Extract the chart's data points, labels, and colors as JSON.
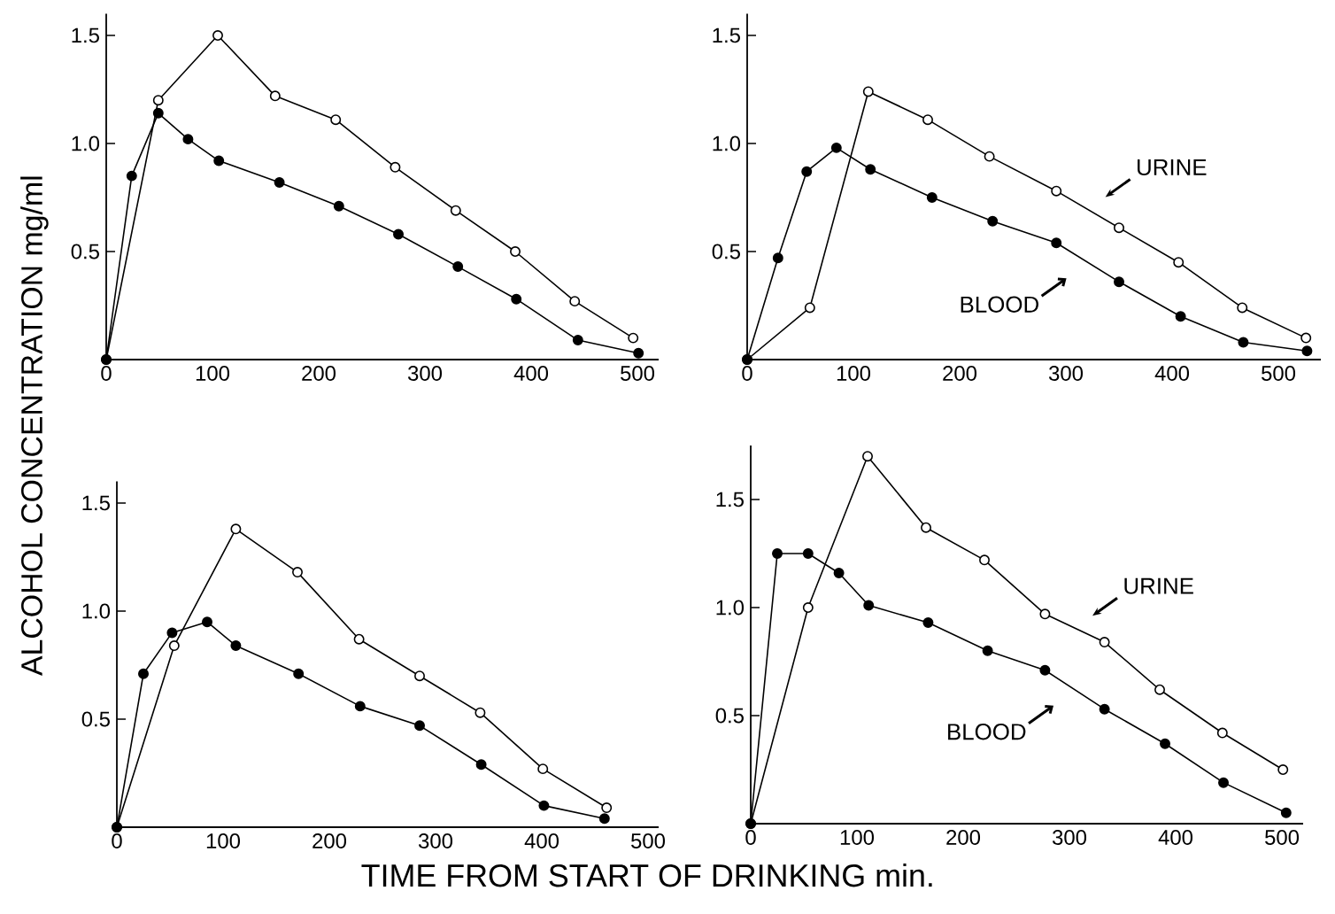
{
  "chart_data": [
    {
      "type": "line",
      "ylabel": "ALCOHOL CONCENTRATION mg/ml",
      "xlim": [
        0,
        520
      ],
      "ylim": [
        0,
        1.6
      ],
      "xticks": [
        0,
        100,
        200,
        300,
        400,
        500
      ],
      "yticks": [
        {
          "value": 0.5,
          "label": "0.5"
        },
        {
          "value": 1,
          "label": "1.0"
        },
        {
          "value": 1.5,
          "label": "1.5"
        }
      ],
      "marker": "circle",
      "line_style": "solid",
      "series": [
        {
          "color": "#000000",
          "x": [
            0,
            49,
            105,
            159,
            216,
            272,
            329,
            385,
            441,
            496
          ],
          "values": [
            0,
            1.2,
            1.5,
            1.22,
            1.11,
            0.89,
            0.69,
            0.5,
            0.27,
            0.1
          ]
        },
        {
          "color": "#000000",
          "x": [
            0,
            24,
            49,
            77,
            106,
            163,
            219,
            275,
            331,
            386,
            444,
            501
          ],
          "values": [
            0,
            0.85,
            1.14,
            1.02,
            0.92,
            0.82,
            0.71,
            0.58,
            0.43,
            0.28,
            0.09,
            0.03
          ]
        }
      ]
    },
    {
      "type": "line",
      "xlim": [
        0,
        540
      ],
      "ylim": [
        0,
        1.6
      ],
      "xticks": [
        0,
        100,
        200,
        300,
        400,
        500
      ],
      "yticks": [
        {
          "value": 0.5,
          "label": "0.5"
        },
        {
          "value": 1,
          "label": "1.0"
        },
        {
          "value": 1.5,
          "label": "1.5"
        }
      ],
      "marker": "circle",
      "line_style": "solid",
      "series": [
        {
          "name": "URINE",
          "color": "#000000",
          "x": [
            0,
            59,
            114,
            170,
            228,
            291,
            350,
            406,
            466,
            526
          ],
          "values": [
            0,
            0.24,
            1.24,
            1.11,
            0.94,
            0.78,
            0.61,
            0.45,
            0.24,
            0.1
          ]
        },
        {
          "name": "BLOOD",
          "color": "#000000",
          "x": [
            0,
            29,
            56,
            84,
            116,
            174,
            231,
            291,
            350,
            408,
            467,
            527
          ],
          "values": [
            0,
            0.47,
            0.87,
            0.98,
            0.88,
            0.75,
            0.64,
            0.54,
            0.36,
            0.2,
            0.08,
            0.04
          ]
        }
      ]
    },
    {
      "type": "line",
      "xlabel": "TIME FROM START OF DRINKING min.",
      "xlim": [
        0,
        510
      ],
      "ylim": [
        0,
        1.6
      ],
      "xticks": [
        0,
        100,
        200,
        300,
        400,
        500
      ],
      "yticks": [
        {
          "value": 0.5,
          "label": "0.5"
        },
        {
          "value": 1,
          "label": "1.0"
        },
        {
          "value": 1.5,
          "label": "1.5"
        }
      ],
      "marker": "circle",
      "line_style": "solid",
      "series": [
        {
          "color": "#000000",
          "x": [
            0,
            54,
            112,
            170,
            228,
            285,
            342,
            401,
            461
          ],
          "values": [
            0,
            0.84,
            1.38,
            1.18,
            0.87,
            0.7,
            0.53,
            0.27,
            0.09
          ]
        },
        {
          "color": "#000000",
          "x": [
            0,
            25,
            52,
            85,
            112,
            171,
            229,
            285,
            343,
            402,
            459
          ],
          "values": [
            0,
            0.71,
            0.9,
            0.95,
            0.84,
            0.71,
            0.56,
            0.47,
            0.29,
            0.1,
            0.04
          ]
        }
      ]
    },
    {
      "type": "line",
      "xlim": [
        0,
        520
      ],
      "ylim": [
        0,
        1.75
      ],
      "xticks": [
        0,
        100,
        200,
        300,
        400,
        500
      ],
      "yticks": [
        {
          "value": 0.5,
          "label": "0.5"
        },
        {
          "value": 1,
          "label": "1.0"
        },
        {
          "value": 1.5,
          "label": "1.5"
        }
      ],
      "marker": "circle",
      "line_style": "solid",
      "series": [
        {
          "name": "URINE",
          "color": "#000000",
          "x": [
            0,
            54,
            110,
            165,
            220,
            277,
            333,
            385,
            444,
            501
          ],
          "values": [
            0,
            1.0,
            1.7,
            1.37,
            1.22,
            0.97,
            0.84,
            0.62,
            0.42,
            0.25
          ]
        },
        {
          "name": "BLOOD",
          "color": "#000000",
          "x": [
            0,
            25,
            54,
            83,
            111,
            167,
            223,
            277,
            333,
            390,
            445,
            504
          ],
          "values": [
            0,
            1.25,
            1.25,
            1.16,
            1.01,
            0.93,
            0.8,
            0.71,
            0.53,
            0.37,
            0.19,
            0.05
          ]
        }
      ]
    }
  ]
}
